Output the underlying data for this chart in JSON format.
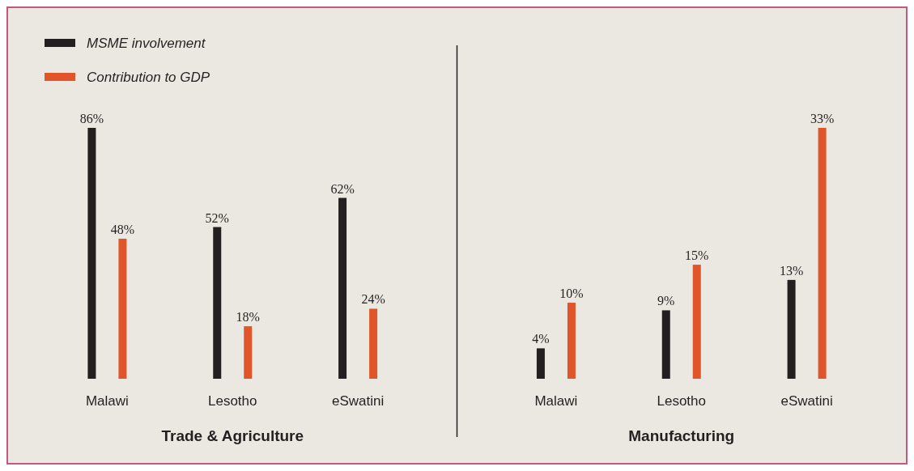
{
  "chart_data": [
    {
      "type": "bar",
      "title": "Trade & Agriculture",
      "categories": [
        "Malawi",
        "Lesotho",
        "eSwatini"
      ],
      "legend": "top left",
      "series": [
        {
          "name": "MSME involvement",
          "color": "#231f20",
          "values": [
            86,
            52,
            62
          ],
          "value_labels": [
            "86%",
            "52%",
            "62%"
          ]
        },
        {
          "name": "Contribution to GDP",
          "color": "#e0562a",
          "values": [
            48,
            18,
            24
          ],
          "value_labels": [
            "48%",
            "18%",
            "24%"
          ]
        }
      ]
    },
    {
      "type": "bar",
      "title": "Manufacturing",
      "categories": [
        "Malawi",
        "Lesotho",
        "eSwatini"
      ],
      "series": [
        {
          "color": "#231f20",
          "values": [
            4,
            9,
            13
          ],
          "value_labels": [
            "4%",
            "9%",
            "13%"
          ]
        },
        {
          "color": "#e0562a",
          "values": [
            10,
            15,
            33
          ],
          "value_labels": [
            "10%",
            "15%",
            "33%"
          ]
        }
      ]
    }
  ]
}
